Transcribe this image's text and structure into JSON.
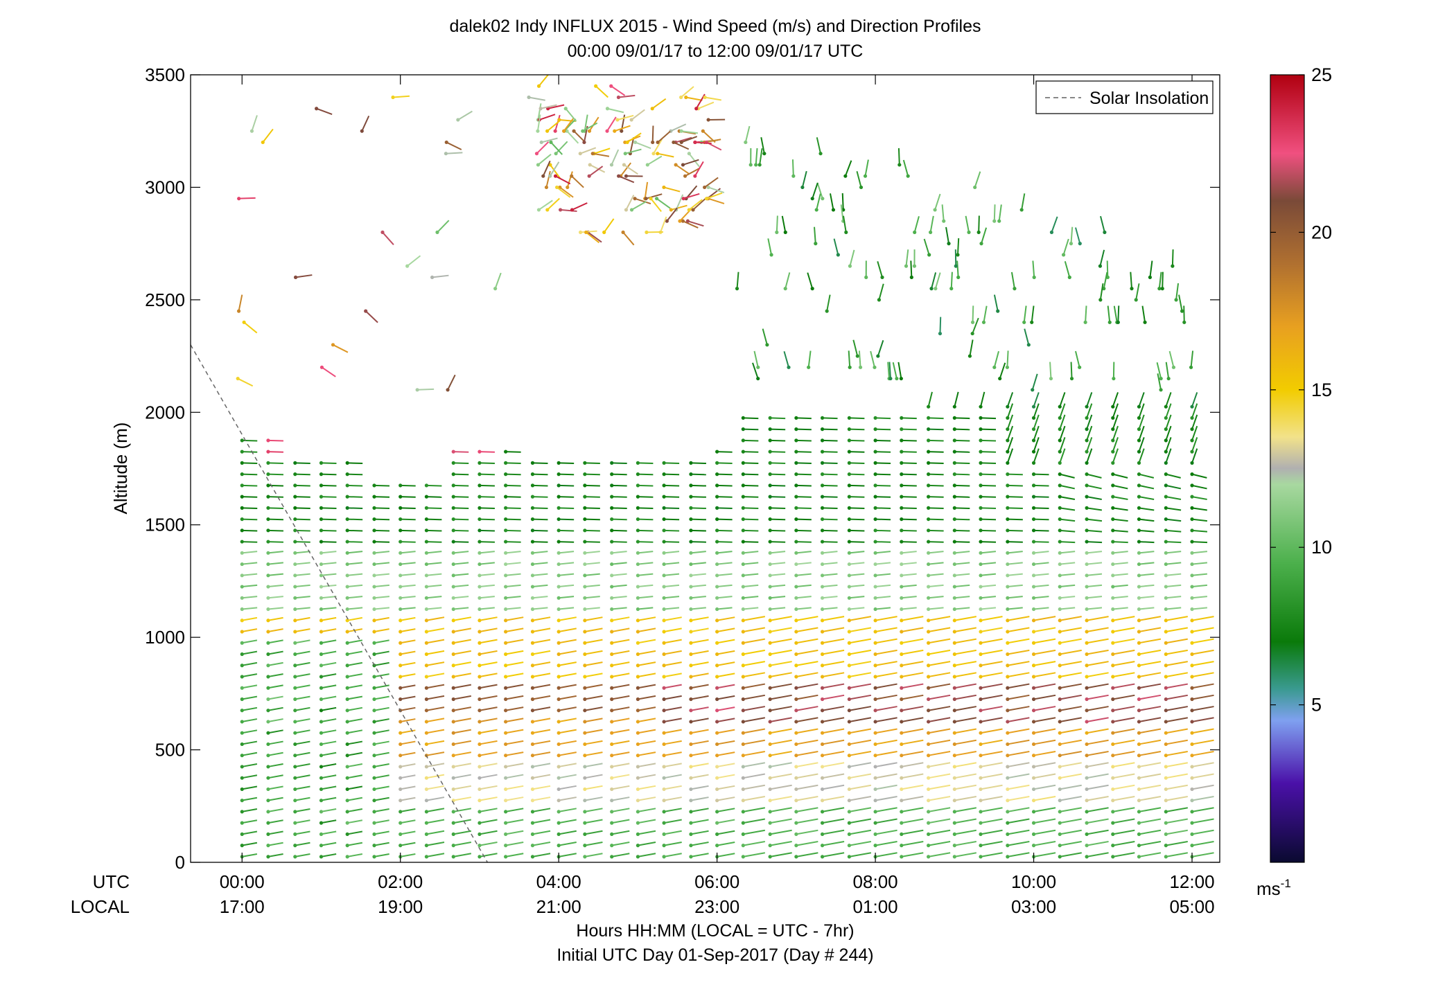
{
  "chart_data": {
    "type": "wind-profile",
    "title_lines": [
      "dalek02 Indy INFLUX 2015 - Wind Speed (m/s) and Direction Profiles",
      "00:00 09/01/17 to 12:00 09/01/17  UTC"
    ],
    "ylabel": "Altitude (m)",
    "ylim": [
      0,
      3500
    ],
    "yticks": [
      "0",
      "500",
      "1000",
      "1500",
      "2000",
      "2500",
      "3000",
      "3500"
    ],
    "xlim_hours": [
      -0.65,
      12.35
    ],
    "xticks": [
      {
        "h": 0,
        "utc": "00:00",
        "local": "17:00"
      },
      {
        "h": 2,
        "utc": "02:00",
        "local": "19:00"
      },
      {
        "h": 4,
        "utc": "04:00",
        "local": "21:00"
      },
      {
        "h": 6,
        "utc": "06:00",
        "local": "23:00"
      },
      {
        "h": 8,
        "utc": "08:00",
        "local": "01:00"
      },
      {
        "h": 10,
        "utc": "10:00",
        "local": "03:00"
      },
      {
        "h": 12,
        "utc": "12:00",
        "local": "05:00"
      }
    ],
    "xaxis_row_labels": {
      "utc": "UTC",
      "local": "LOCAL"
    },
    "xlabel_lines": [
      "Hours HH:MM  (LOCAL = UTC - 7hr)",
      "Initial UTC Day 01-Sep-2017 (Day # 244)"
    ],
    "legend": {
      "label": "Solar Insolation",
      "placement": "top-right",
      "style": "dashed",
      "color": "#888888"
    },
    "solar_insolation_line": [
      [
        -0.65,
        2300
      ],
      [
        3.1,
        0
      ]
    ],
    "colorbar": {
      "label": "ms",
      "label_superscript": "-1",
      "range": [
        0,
        25
      ],
      "ticks": [
        "5",
        "10",
        "15",
        "20",
        "25"
      ],
      "colormap": [
        {
          "v": 0,
          "c": "#0a0a30"
        },
        {
          "v": 2.5,
          "c": "#4a10a8"
        },
        {
          "v": 4.5,
          "c": "#7fa0f0"
        },
        {
          "v": 5.5,
          "c": "#3a9a90"
        },
        {
          "v": 7,
          "c": "#0a7a0a"
        },
        {
          "v": 9.5,
          "c": "#4cb04c"
        },
        {
          "v": 12,
          "c": "#a8d8a0"
        },
        {
          "v": 12.5,
          "c": "#b0b0b0"
        },
        {
          "v": 13.5,
          "c": "#f2e28a"
        },
        {
          "v": 15,
          "c": "#f2cc00"
        },
        {
          "v": 17,
          "c": "#e8a020"
        },
        {
          "v": 19,
          "c": "#b07030"
        },
        {
          "v": 21,
          "c": "#7a4a38"
        },
        {
          "v": 22.5,
          "c": "#f05080"
        },
        {
          "v": 25,
          "c": "#b00010"
        }
      ]
    },
    "profile_times_hours": [
      0,
      0.33,
      0.67,
      1.0,
      1.33,
      1.67,
      2.0,
      2.33,
      2.67,
      3.0,
      3.33,
      3.67,
      4.0,
      4.33,
      4.67,
      5.0,
      5.33,
      5.67,
      6.0,
      6.33,
      6.67,
      7.0,
      7.33,
      7.67,
      8.0,
      8.33,
      8.67,
      9.0,
      9.33,
      9.67,
      10.0,
      10.33,
      10.67,
      11.0,
      11.33,
      11.67,
      12.0
    ],
    "gate_spacing_m": 50,
    "wind_layers": [
      {
        "from_m": 0,
        "to_m": 250,
        "speed_ms": 9.5,
        "direction": "southwesterly"
      },
      {
        "from_m": 250,
        "to_m": 450,
        "speed_ms": 13,
        "direction": "southwesterly"
      },
      {
        "from_m": 450,
        "to_m": 650,
        "speed_ms": 17,
        "direction": "southwesterly"
      },
      {
        "from_m": 650,
        "to_m": 800,
        "speed_ms": 20,
        "direction": "southwesterly"
      },
      {
        "from_m": 800,
        "to_m": 1100,
        "speed_ms": 15.5,
        "direction": "southwesterly"
      },
      {
        "from_m": 1100,
        "to_m": 1400,
        "speed_ms": 11,
        "direction": "westerly"
      },
      {
        "from_m": 1400,
        "to_m": 2000,
        "speed_ms": 7.5,
        "direction": "westerly"
      },
      {
        "from_m": 2000,
        "to_m": 2600,
        "speed_ms": 7,
        "direction": "northerly"
      },
      {
        "from_m": 2600,
        "to_m": 3500,
        "speed_ms": 9,
        "direction": "variable"
      }
    ]
  }
}
